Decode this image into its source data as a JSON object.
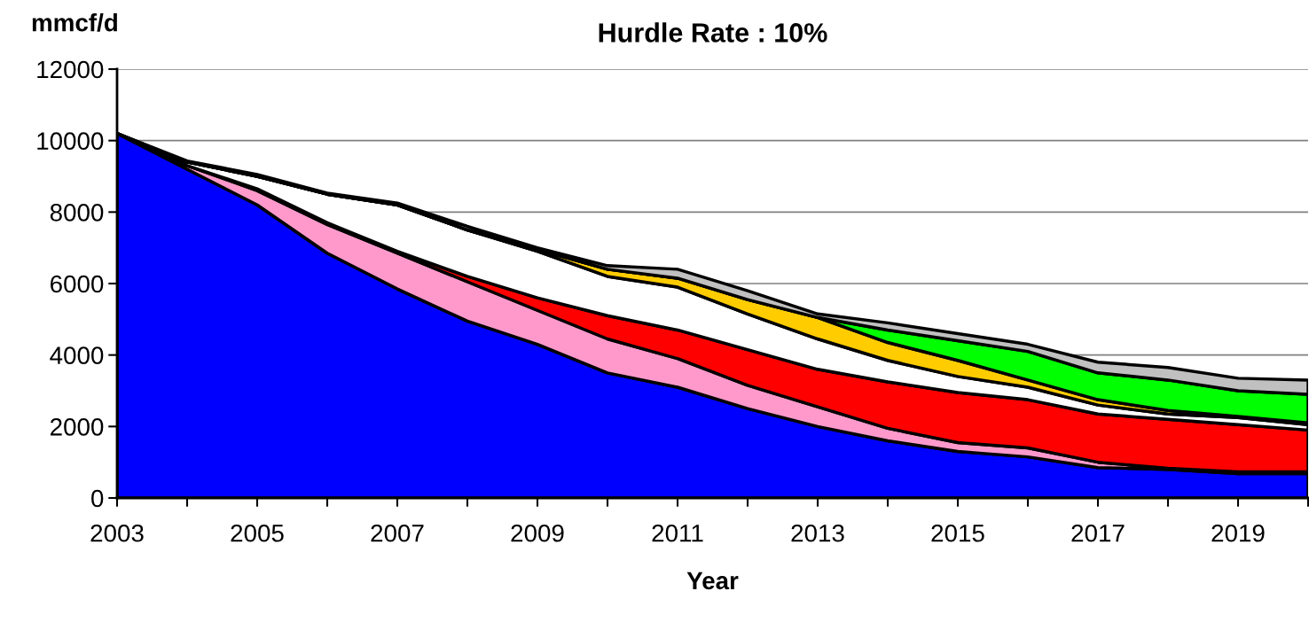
{
  "chart_data": {
    "type": "area",
    "stacked": true,
    "title": "Hurdle Rate : 10%",
    "xlabel": "Year",
    "ylabel": "mmcf/d",
    "x": [
      2003,
      2004,
      2005,
      2006,
      2007,
      2008,
      2009,
      2010,
      2011,
      2012,
      2013,
      2014,
      2015,
      2016,
      2017,
      2018,
      2019,
      2020
    ],
    "series": [
      {
        "color": "#0000ff",
        "values": [
          10200,
          9200,
          8200,
          6850,
          5850,
          4950,
          4300,
          3500,
          3100,
          2500,
          2000,
          1600,
          1300,
          1150,
          850,
          800,
          680,
          680
        ]
      },
      {
        "color": "#ff99cc",
        "values": [
          0,
          100,
          400,
          800,
          1000,
          1100,
          950,
          950,
          800,
          650,
          550,
          350,
          250,
          250,
          150,
          30,
          50,
          50
        ]
      },
      {
        "color": "#ff0000",
        "values": [
          0,
          0,
          50,
          50,
          50,
          150,
          350,
          650,
          800,
          1000,
          1050,
          1300,
          1400,
          1350,
          1350,
          1370,
          1320,
          1170
        ]
      },
      {
        "color": "#ffffff",
        "values": [
          0,
          100,
          350,
          800,
          1300,
          1300,
          1300,
          1100,
          1200,
          1000,
          850,
          600,
          450,
          350,
          250,
          150,
          200,
          150
        ]
      },
      {
        "color": "#ffcc00",
        "values": [
          0,
          0,
          0,
          0,
          0,
          0,
          50,
          200,
          250,
          400,
          600,
          500,
          450,
          200,
          150,
          100,
          30,
          50
        ]
      },
      {
        "color": "#00ff00",
        "values": [
          0,
          0,
          0,
          0,
          0,
          0,
          0,
          0,
          0,
          0,
          0,
          350,
          550,
          800,
          750,
          850,
          720,
          800
        ]
      },
      {
        "color": "#c0c0c0",
        "values": [
          0,
          30,
          50,
          30,
          50,
          100,
          50,
          100,
          250,
          250,
          100,
          200,
          200,
          200,
          300,
          350,
          350,
          400
        ]
      }
    ],
    "xlim": [
      2003,
      2020
    ],
    "xticks": [
      2003,
      {
        "value": 2004,
        "label": null
      },
      2005,
      {
        "value": 2006,
        "label": null
      },
      2007,
      {
        "value": 2008,
        "label": null
      },
      2009,
      {
        "value": 2010,
        "label": null
      },
      2011,
      {
        "value": 2012,
        "label": null
      },
      2013,
      {
        "value": 2014,
        "label": null
      },
      2015,
      {
        "value": 2016,
        "label": null
      },
      2017,
      {
        "value": 2018,
        "label": null
      },
      2019,
      {
        "value": 2020,
        "label": null
      }
    ],
    "ylim": [
      0,
      12000
    ],
    "yticks": [
      0,
      2000,
      4000,
      6000,
      8000,
      10000,
      12000
    ],
    "grid": "y",
    "legend": false
  }
}
